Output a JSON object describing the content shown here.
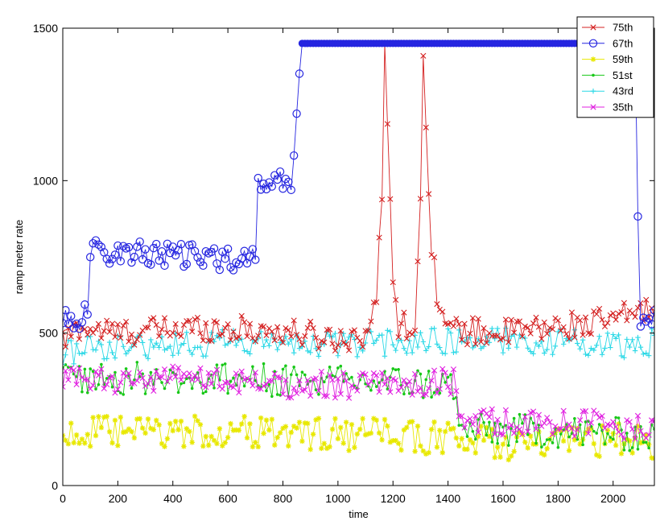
{
  "chart_data": {
    "type": "line",
    "title": "",
    "xlabel": "time",
    "ylabel": "ramp meter rate",
    "xlim": [
      0,
      2150
    ],
    "ylim": [
      0,
      1500
    ],
    "xticks": [
      0,
      200,
      400,
      600,
      800,
      1000,
      1200,
      1400,
      1600,
      1800,
      2000
    ],
    "yticks": [
      0,
      500,
      1000,
      1500
    ],
    "grid": false,
    "legend_position": "top-right",
    "series": [
      {
        "name": "75th",
        "color": "#d42020",
        "marker": "x",
        "keypoints": [
          [
            0,
            470
          ],
          [
            60,
            520
          ],
          [
            200,
            500
          ],
          [
            350,
            510
          ],
          [
            500,
            520
          ],
          [
            700,
            510
          ],
          [
            850,
            500
          ],
          [
            1000,
            480
          ],
          [
            1100,
            500
          ],
          [
            1140,
            600
          ],
          [
            1160,
            950
          ],
          [
            1170,
            1420
          ],
          [
            1180,
            1200
          ],
          [
            1200,
            700
          ],
          [
            1220,
            530
          ],
          [
            1280,
            520
          ],
          [
            1300,
            900
          ],
          [
            1310,
            1430
          ],
          [
            1325,
            1100
          ],
          [
            1340,
            800
          ],
          [
            1360,
            640
          ],
          [
            1380,
            560
          ],
          [
            1400,
            510
          ],
          [
            1600,
            500
          ],
          [
            1800,
            520
          ],
          [
            2000,
            540
          ],
          [
            2100,
            580
          ],
          [
            2150,
            560
          ]
        ],
        "noise": 45
      },
      {
        "name": "67th",
        "color": "#2525e0",
        "marker": "o",
        "keypoints": [
          [
            0,
            560
          ],
          [
            30,
            540
          ],
          [
            90,
            560
          ],
          [
            100,
            770
          ],
          [
            300,
            760
          ],
          [
            500,
            750
          ],
          [
            700,
            740
          ],
          [
            710,
            1000
          ],
          [
            830,
            1000
          ],
          [
            840,
            1060
          ],
          [
            850,
            1200
          ],
          [
            860,
            1390
          ],
          [
            870,
            1450
          ],
          [
            2080,
            1450
          ],
          [
            2090,
            860
          ],
          [
            2100,
            520
          ],
          [
            2150,
            560
          ]
        ],
        "noise": 40,
        "flat_range": [
          870,
          2080
        ]
      },
      {
        "name": "59th",
        "color": "#e8e800",
        "marker": "*",
        "keypoints": [
          [
            0,
            170
          ],
          [
            300,
            175
          ],
          [
            600,
            175
          ],
          [
            900,
            170
          ],
          [
            1200,
            165
          ],
          [
            1450,
            150
          ],
          [
            1700,
            130
          ],
          [
            2000,
            150
          ],
          [
            2150,
            140
          ]
        ],
        "noise": 55
      },
      {
        "name": "51st",
        "color": "#18c818",
        "marker": ".",
        "keypoints": [
          [
            0,
            360
          ],
          [
            300,
            350
          ],
          [
            600,
            350
          ],
          [
            900,
            340
          ],
          [
            1200,
            340
          ],
          [
            1420,
            330
          ],
          [
            1440,
            180
          ],
          [
            1700,
            180
          ],
          [
            2000,
            170
          ],
          [
            2150,
            160
          ]
        ],
        "noise": 55
      },
      {
        "name": "43rd",
        "color": "#2ad8e6",
        "marker": "+",
        "keypoints": [
          [
            0,
            440
          ],
          [
            300,
            460
          ],
          [
            600,
            470
          ],
          [
            900,
            460
          ],
          [
            1200,
            470
          ],
          [
            1500,
            480
          ],
          [
            1800,
            470
          ],
          [
            2000,
            460
          ],
          [
            2150,
            470
          ]
        ],
        "noise": 45
      },
      {
        "name": "35th",
        "color": "#e020e0",
        "marker": "x",
        "keypoints": [
          [
            0,
            340
          ],
          [
            300,
            350
          ],
          [
            600,
            340
          ],
          [
            900,
            330
          ],
          [
            1200,
            330
          ],
          [
            1420,
            340
          ],
          [
            1440,
            210
          ],
          [
            1700,
            210
          ],
          [
            2000,
            200
          ],
          [
            2150,
            190
          ]
        ],
        "noise": 45
      }
    ]
  }
}
